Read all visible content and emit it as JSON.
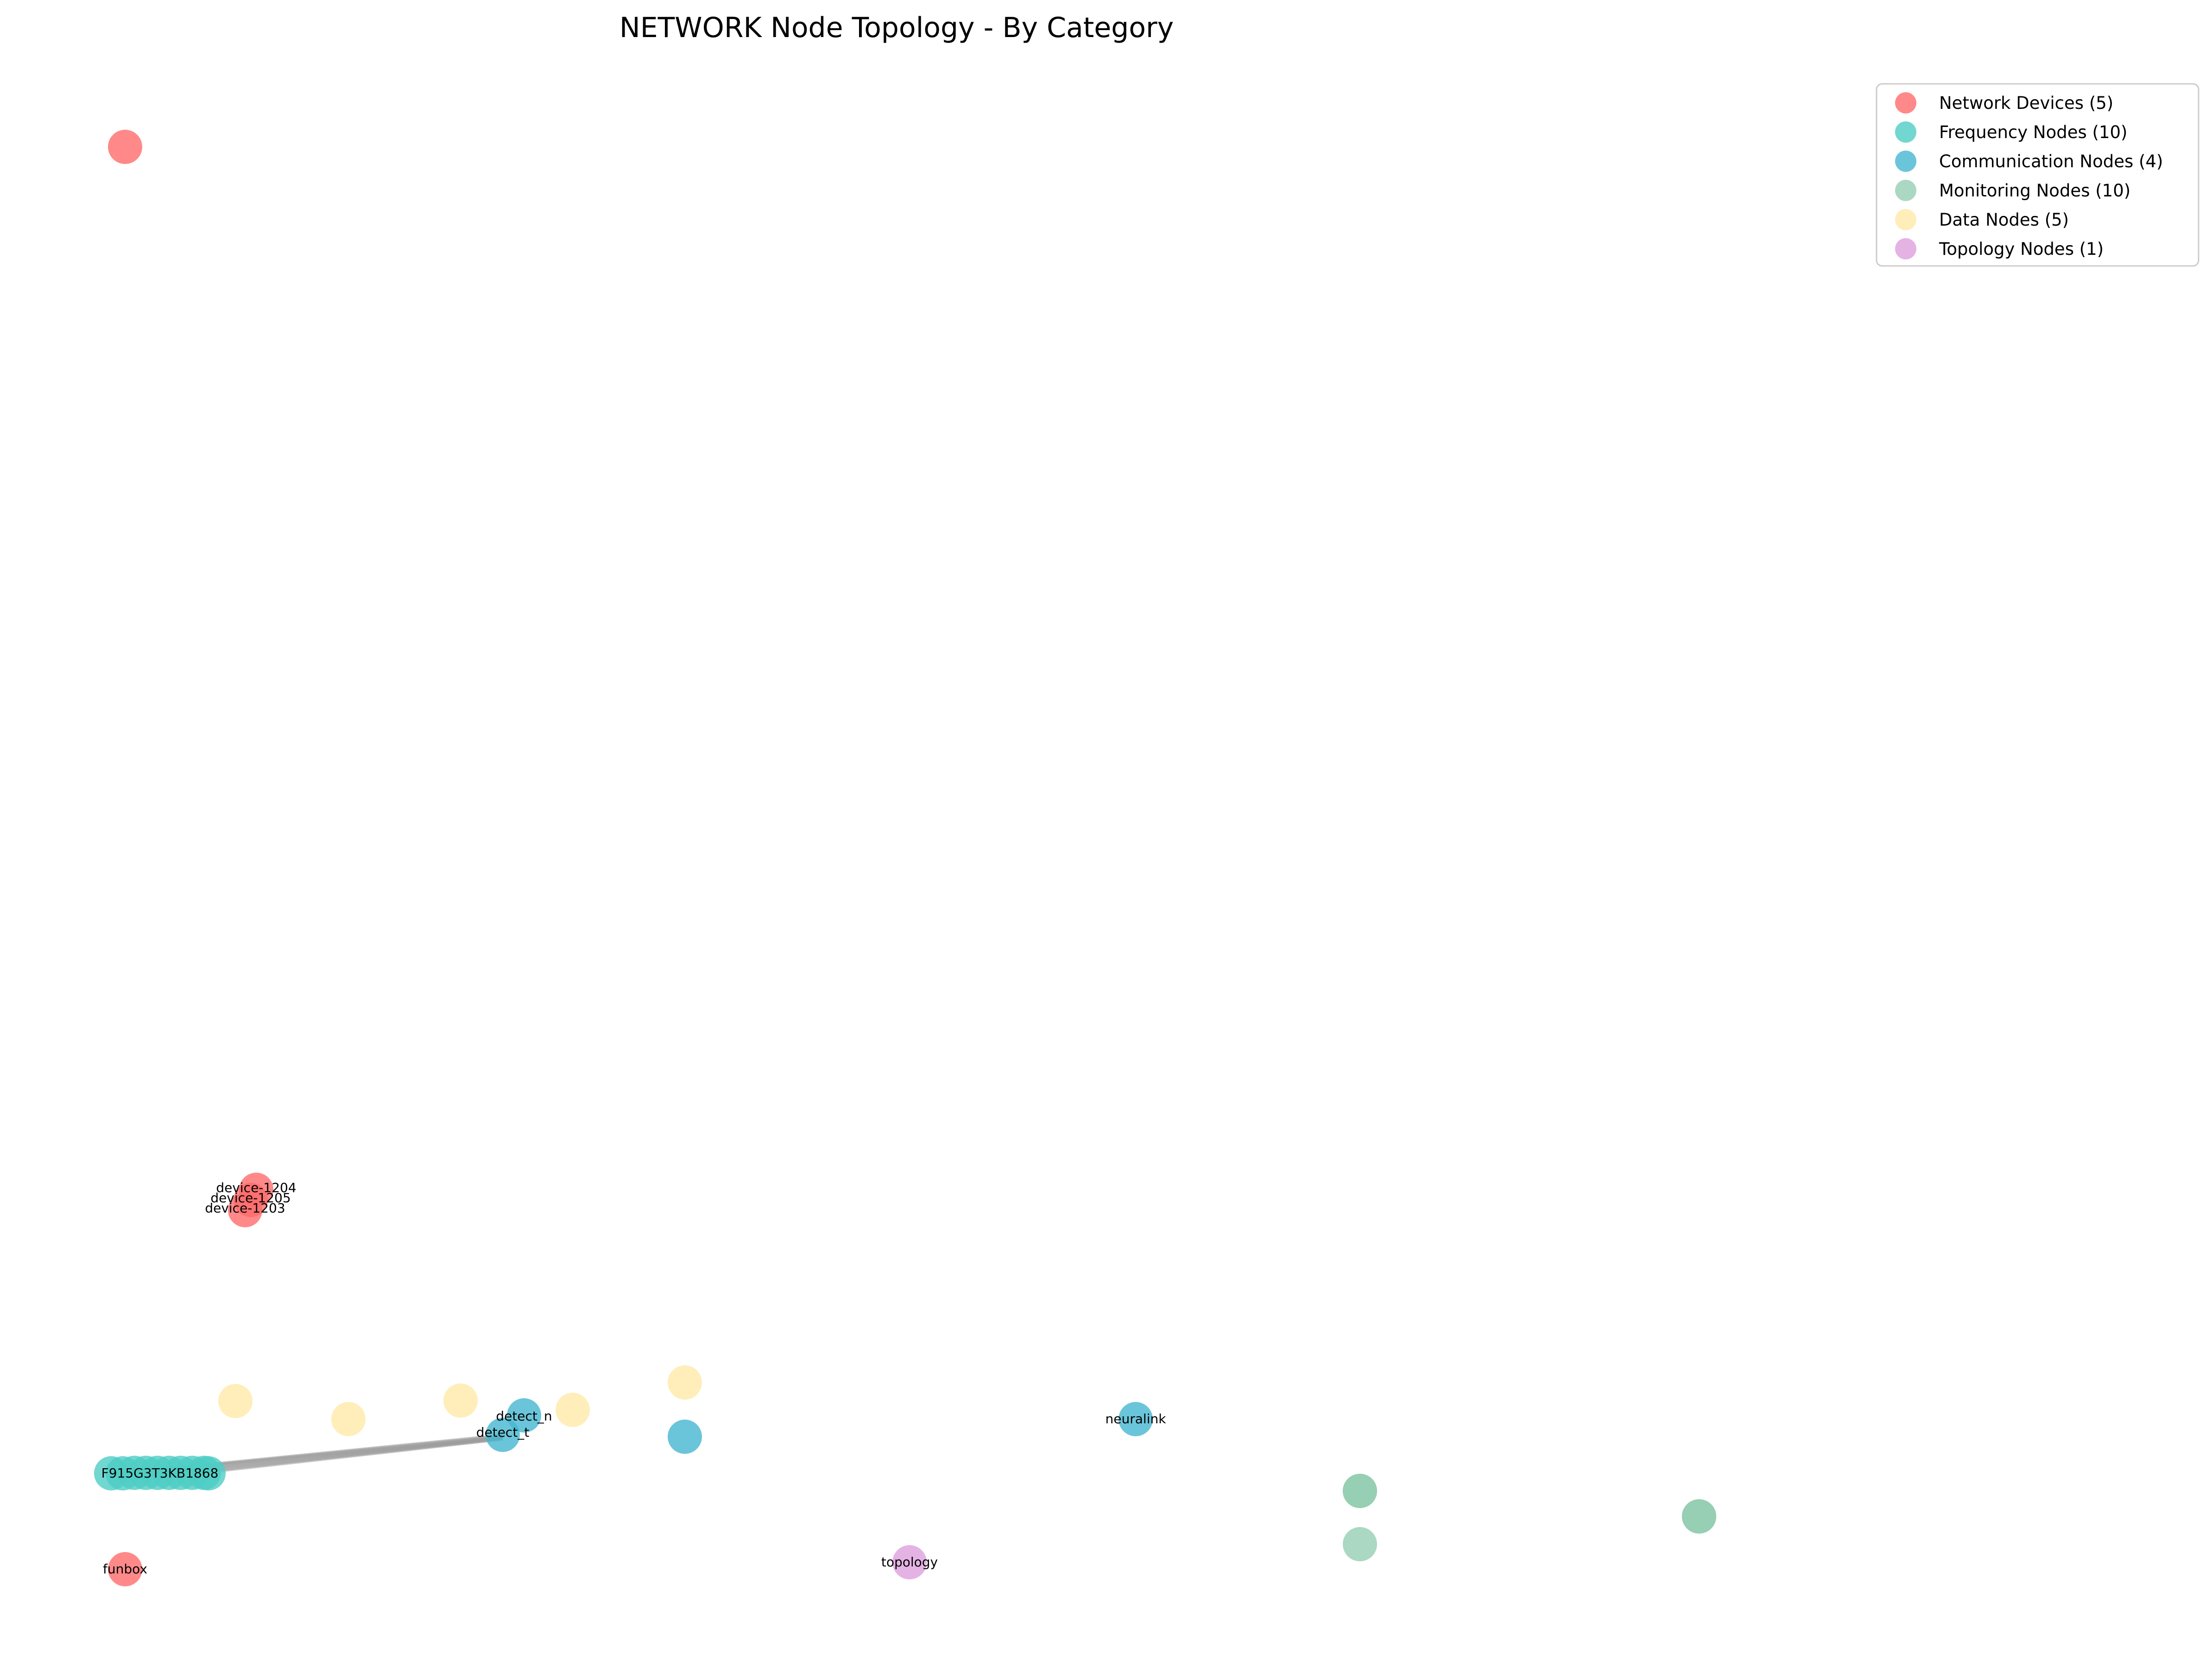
{
  "title": "NETWORK Node Topology - By Category",
  "legend": [
    {
      "label": "Network Devices (5)",
      "color": "#FF6B6B"
    },
    {
      "label": "Frequency Nodes (10)",
      "color": "#4ECDC4"
    },
    {
      "label": "Communication Nodes (4)",
      "color": "#45B7D1"
    },
    {
      "label": "Monitoring Nodes (10)",
      "color": "#96CEB4"
    },
    {
      "label": "Data Nodes (5)",
      "color": "#FFEAA7"
    },
    {
      "label": "Topology Nodes (1)",
      "color": "#DDA0DD"
    }
  ],
  "node_labels": {
    "device_1204": "device-1204",
    "device_1205": "device-1205",
    "device_1203": "device-1203",
    "detect_n": "detect_n",
    "detect_t": "detect_t",
    "neuralink": "neuralink",
    "frequency_cluster": "F915G3T3KB1868",
    "funbox": "funbox",
    "topology": "topology"
  }
}
